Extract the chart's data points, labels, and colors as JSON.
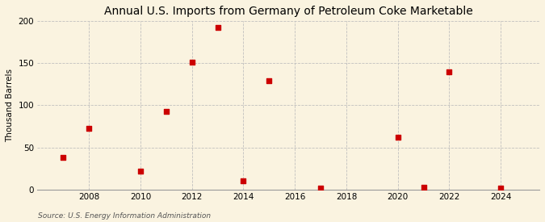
{
  "title": "Annual U.S. Imports from Germany of Petroleum Coke Marketable",
  "ylabel": "Thousand Barrels",
  "source": "Source: U.S. Energy Information Administration",
  "background_color": "#faf3e0",
  "marker_color": "#cc0000",
  "grid_color": "#bbbbbb",
  "xlim": [
    2006.0,
    2025.5
  ],
  "ylim": [
    0,
    200
  ],
  "yticks": [
    0,
    50,
    100,
    150,
    200
  ],
  "xticks": [
    2008,
    2010,
    2012,
    2014,
    2016,
    2018,
    2020,
    2022,
    2024
  ],
  "data": {
    "years": [
      2007,
      2008,
      2010,
      2011,
      2012,
      2013,
      2014,
      2015,
      2017,
      2020,
      2021,
      2022,
      2024
    ],
    "values": [
      38,
      73,
      22,
      93,
      151,
      193,
      10,
      129,
      2,
      62,
      3,
      140,
      2
    ]
  }
}
